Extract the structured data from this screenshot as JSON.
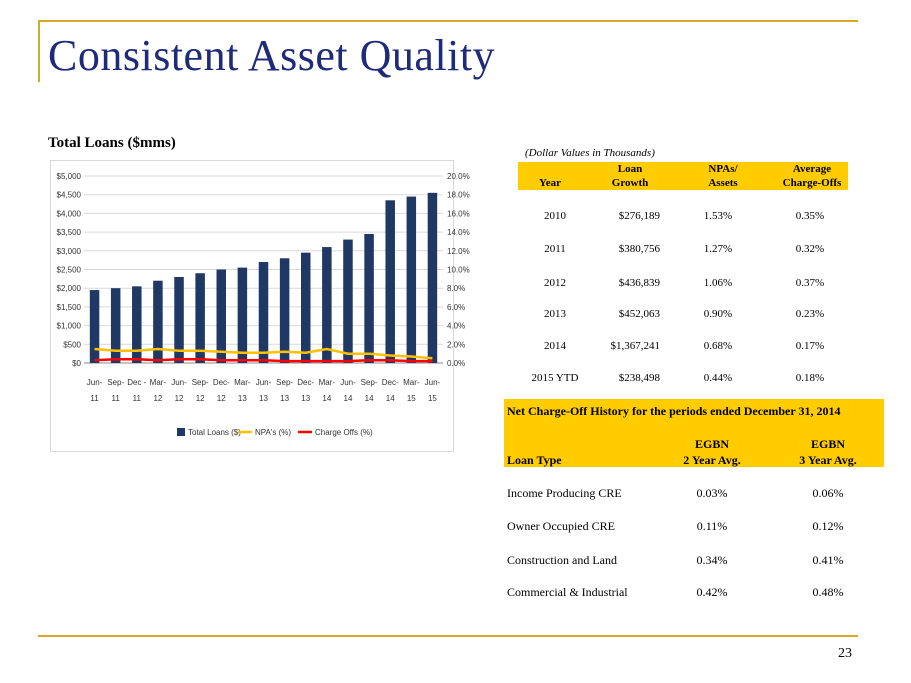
{
  "slide": {
    "title": "Consistent Asset Quality",
    "page_number": "23"
  },
  "chart_heading": "Total Loans ($mms)",
  "chart_data": {
    "type": "bar",
    "categories": [
      "Jun-11",
      "Sep-11",
      "Dec-11",
      "Mar-12",
      "Jun-12",
      "Sep-12",
      "Dec-12",
      "Mar-13",
      "Jun-13",
      "Sep-13",
      "Dec-13",
      "Mar-14",
      "Jun-14",
      "Sep-14",
      "Dec-14",
      "Mar-15",
      "Jun-15"
    ],
    "category_lines": [
      [
        "Jun-",
        "11"
      ],
      [
        "Sep-",
        "11"
      ],
      [
        "Dec -",
        "11"
      ],
      [
        "Mar-",
        "12"
      ],
      [
        "Jun-",
        "12"
      ],
      [
        "Sep-",
        "12"
      ],
      [
        "Dec-",
        "12"
      ],
      [
        "Mar-",
        "13"
      ],
      [
        "Jun-",
        "13"
      ],
      [
        "Sep-",
        "13"
      ],
      [
        "Dec-",
        "13"
      ],
      [
        "Mar-",
        "14"
      ],
      [
        "Jun-",
        "14"
      ],
      [
        "Sep-",
        "14"
      ],
      [
        "Dec-",
        "14"
      ],
      [
        "Mar-",
        "15"
      ],
      [
        "Jun-",
        "15"
      ]
    ],
    "series": [
      {
        "name": "Total Loans ($)",
        "type": "bar",
        "axis": "left",
        "color": "#1f3864",
        "values": [
          1950,
          2000,
          2050,
          2200,
          2300,
          2400,
          2500,
          2550,
          2700,
          2800,
          2950,
          3100,
          3300,
          3450,
          4350,
          4450,
          4550
        ]
      },
      {
        "name": "NPA's (%)",
        "type": "line",
        "axis": "right",
        "color": "#ffc000",
        "values": [
          1.5,
          1.3,
          1.3,
          1.5,
          1.3,
          1.3,
          1.2,
          1.1,
          1.1,
          1.2,
          1.1,
          1.5,
          1.0,
          1.0,
          0.8,
          0.7,
          0.5
        ]
      },
      {
        "name": "Charge Offs (%)",
        "type": "line",
        "axis": "right",
        "color": "#ff0000",
        "values": [
          0.3,
          0.4,
          0.4,
          0.3,
          0.4,
          0.4,
          0.3,
          0.3,
          0.3,
          0.2,
          0.2,
          0.2,
          0.2,
          0.3,
          0.3,
          0.2,
          0.2
        ]
      }
    ],
    "y_left": {
      "min": 0,
      "max": 5000,
      "ticks": [
        "$0",
        "$500",
        "$1,000",
        "$1,500",
        "$2,000",
        "$2,500",
        "$3,000",
        "$3,500",
        "$4,000",
        "$4,500",
        "$5,000"
      ]
    },
    "y_right": {
      "min": 0,
      "max": 20,
      "ticks": [
        "0.0%",
        "2.0%",
        "4.0%",
        "6.0%",
        "8.0%",
        "10.0%",
        "12.0%",
        "14.0%",
        "16.0%",
        "18.0%",
        "20.0%"
      ]
    },
    "grid": true,
    "legend": "bottom"
  },
  "table1": {
    "note": "(Dollar Values in Thousands)",
    "header_line1": [
      "",
      "Loan",
      "NPAs/",
      "Average"
    ],
    "header_line2": [
      "Year",
      "Growth",
      "Assets",
      "Charge-Offs"
    ],
    "rows": [
      [
        "2010",
        "$276,189",
        "1.53%",
        "0.35%"
      ],
      [
        "2011",
        "$380,756",
        "1.27%",
        "0.32%"
      ],
      [
        "2012",
        "$436,839",
        "1.06%",
        "0.37%"
      ],
      [
        "2013",
        "$452,063",
        "0.90%",
        "0.23%"
      ],
      [
        "2014",
        "$1,367,241",
        "0.68%",
        "0.17%"
      ],
      [
        "2015 YTD",
        "$238,498",
        "0.44%",
        "0.18%"
      ]
    ]
  },
  "table2": {
    "title": "Net Charge-Off History for the periods ended December 31, 2014",
    "header_line1": [
      "",
      "EGBN",
      "EGBN"
    ],
    "header_line2": [
      "Loan Type",
      "2 Year Avg.",
      "3 Year Avg."
    ],
    "rows": [
      [
        "Income Producing CRE",
        "0.03%",
        "0.06%"
      ],
      [
        "Owner Occupied CRE",
        "0.11%",
        "0.12%"
      ],
      [
        "Construction and Land",
        "0.34%",
        "0.41%"
      ],
      [
        "Commercial & Industrial",
        "0.42%",
        "0.48%"
      ]
    ]
  }
}
